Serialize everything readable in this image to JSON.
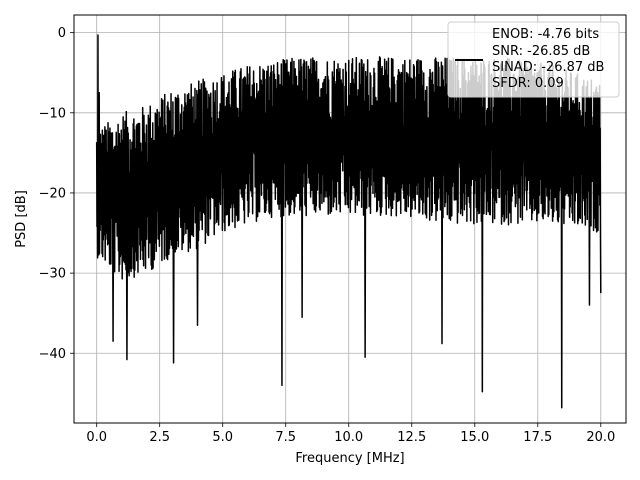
{
  "chart_data": {
    "type": "line",
    "title": "",
    "xlabel": "Frequency [MHz]",
    "ylabel": "PSD [dB]",
    "xlim": [
      -0.9,
      21.0
    ],
    "ylim": [
      -48.7,
      2.2
    ],
    "xticks": [
      0.0,
      2.5,
      5.0,
      7.5,
      10.0,
      12.5,
      15.0,
      17.5,
      20.0
    ],
    "xtick_labels": [
      "0.0",
      "2.5",
      "5.0",
      "7.5",
      "10.0",
      "12.5",
      "15.0",
      "17.5",
      "20.0"
    ],
    "yticks": [
      0,
      -10,
      -20,
      -30,
      -40
    ],
    "ytick_labels": [
      "0",
      "−10",
      "−20",
      "−30",
      "−40"
    ],
    "grid": true,
    "legend_position": "top-right",
    "legend": [
      "ENOB: -4.76 bits",
      "SNR: -26.85 dB",
      "SINAD: -26.87 dB",
      "SFDR: 0.09"
    ],
    "series": [
      {
        "color": "#000000",
        "x_range": [
          0.0,
          20.0
        ],
        "dense_noise": true,
        "lower_envelope": {
          "x": [
            0.0,
            1.0,
            2.0,
            3.0,
            4.0,
            5.0,
            6.0,
            7.0,
            8.0,
            10.0,
            12.0,
            14.0,
            16.0,
            18.0,
            20.0
          ],
          "y": [
            -28,
            -31,
            -30,
            -28,
            -27,
            -25,
            -24,
            -23,
            -23,
            -23,
            -23,
            -24,
            -24,
            -24,
            -25
          ]
        },
        "upper_envelope": {
          "x": [
            0.0,
            1.0,
            2.0,
            3.0,
            4.0,
            5.0,
            6.0,
            8.0,
            10.0,
            12.0,
            14.0,
            16.0,
            18.0,
            20.0
          ],
          "y": [
            -12,
            -10,
            -9,
            -7,
            -6,
            -5,
            -4,
            -3,
            -3,
            -3,
            -3,
            -3,
            -4,
            -6
          ]
        },
        "peaks": [
          {
            "x": 0.05,
            "y": -0.3
          },
          {
            "x": 0.1,
            "y": -7.5
          }
        ],
        "dips": [
          {
            "x": 0.65,
            "y": -38.5
          },
          {
            "x": 1.2,
            "y": -40.8
          },
          {
            "x": 3.05,
            "y": -41.2
          },
          {
            "x": 4.0,
            "y": -36.5
          },
          {
            "x": 7.35,
            "y": -44.0
          },
          {
            "x": 8.15,
            "y": -35.5
          },
          {
            "x": 10.65,
            "y": -40.5
          },
          {
            "x": 13.7,
            "y": -38.8
          },
          {
            "x": 15.3,
            "y": -44.8
          },
          {
            "x": 18.45,
            "y": -46.8
          },
          {
            "x": 19.55,
            "y": -34.0
          },
          {
            "x": 20.0,
            "y": -32.5
          }
        ]
      }
    ]
  }
}
